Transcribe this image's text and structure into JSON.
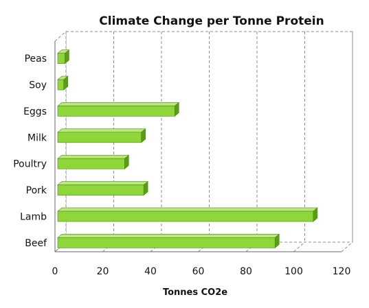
{
  "chart_data": {
    "type": "bar",
    "orientation": "horizontal",
    "title": "Climate Change per Tonne Protein",
    "xlabel": "Tonnes CO2e",
    "ylabel": "",
    "categories": [
      "Peas",
      "Soy",
      "Eggs",
      "Milk",
      "Poultry",
      "Pork",
      "Lamb",
      "Beef"
    ],
    "values": [
      3,
      2.5,
      49,
      35,
      28,
      36,
      107,
      91
    ],
    "xlim": [
      0,
      120
    ],
    "xticks": [
      "0",
      "20",
      "40",
      "60",
      "80",
      "100",
      "120"
    ],
    "grid": true,
    "style": "3d",
    "colors": {
      "bar_front": "#8ed63a",
      "bar_top": "#b9ea78",
      "bar_side": "#5c9a1e",
      "bar_edge": "#4b8a14"
    }
  }
}
